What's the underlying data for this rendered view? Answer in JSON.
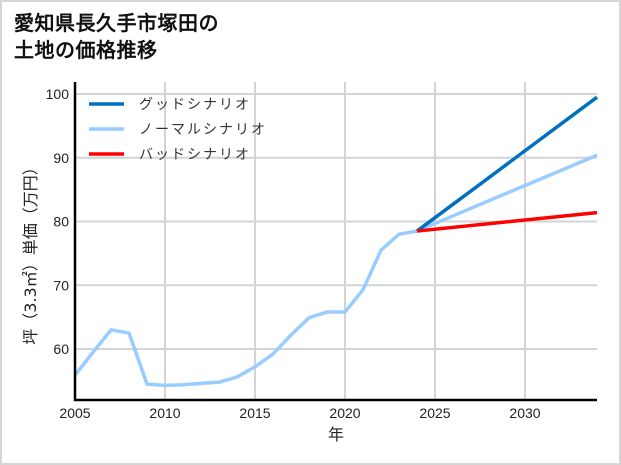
{
  "title": "愛知県長久手市塚田の\n土地の価格推移",
  "chart_data": {
    "type": "line",
    "title": "愛知県長久手市塚田の土地の価格推移",
    "xlabel": "年",
    "ylabel": "坪（3.3㎡）単価（万円）",
    "xlim": [
      2005,
      2034
    ],
    "ylim": [
      52,
      100
    ],
    "xticks": [
      2005,
      2010,
      2015,
      2020,
      2025,
      2030
    ],
    "yticks": [
      60,
      70,
      80,
      90,
      100
    ],
    "grid": true,
    "legend_position": "upper left",
    "series": [
      {
        "name": "グッドシナリオ",
        "color": "#0070C0",
        "x": [
          2024,
          2034
        ],
        "values": [
          78.5,
          99.5
        ]
      },
      {
        "name": "ノーマルシナリオ",
        "color": "#99CCFF",
        "x": [
          2005,
          2006,
          2007,
          2008,
          2009,
          2010,
          2011,
          2012,
          2013,
          2014,
          2015,
          2016,
          2017,
          2018,
          2019,
          2020,
          2021,
          2022,
          2023,
          2024,
          2034
        ],
        "values": [
          55.9,
          59.5,
          63.0,
          62.5,
          54.5,
          54.3,
          54.4,
          54.6,
          54.8,
          55.6,
          57.2,
          59.2,
          62.2,
          64.9,
          65.8,
          65.8,
          69.3,
          75.5,
          78.0,
          78.5,
          90.4
        ]
      },
      {
        "name": "バッドシナリオ",
        "color": "#FF0000",
        "x": [
          2024,
          2034
        ],
        "values": [
          78.5,
          81.4
        ]
      }
    ]
  },
  "axes": {
    "xlabel": "年",
    "ylabel": "坪（3.3㎡）単価（万円）"
  },
  "legend": [
    {
      "label": "グッドシナリオ",
      "color": "#0070C0"
    },
    {
      "label": "ノーマルシナリオ",
      "color": "#99CCFF"
    },
    {
      "label": "バッドシナリオ",
      "color": "#FF0000"
    }
  ]
}
